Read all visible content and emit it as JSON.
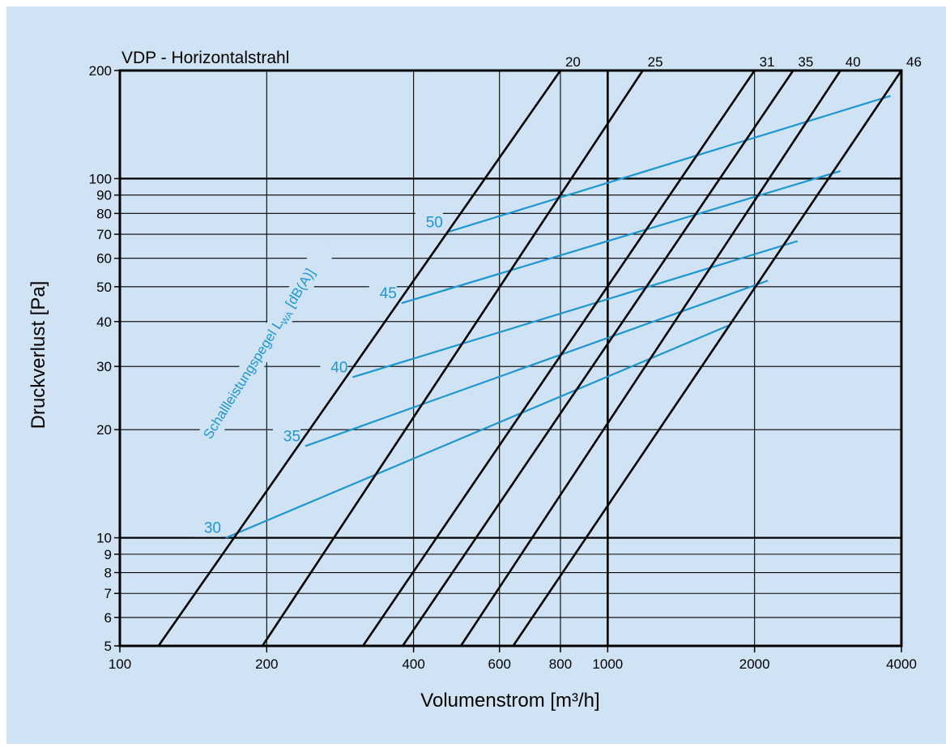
{
  "chart_data": {
    "type": "line",
    "title": "VDP - Horizontalstrahl",
    "xlabel": "Volumenstrom [m³/h]",
    "ylabel": "Druckverlust [Pa]",
    "xscale": "log",
    "yscale": "log",
    "xlim": [
      100,
      4000
    ],
    "ylim": [
      5,
      200
    ],
    "grid": true,
    "x_ticks": [
      {
        "value": 100,
        "label": "100"
      },
      {
        "value": 200,
        "label": "200"
      },
      {
        "value": 400,
        "label": "400"
      },
      {
        "value": 600,
        "label": "600"
      },
      {
        "value": 800,
        "label": "800"
      },
      {
        "value": 1000,
        "label": "1000"
      },
      {
        "value": 2000,
        "label": "2000"
      },
      {
        "value": 4000,
        "label": "4000"
      }
    ],
    "y_ticks": [
      {
        "value": 5,
        "label": "5"
      },
      {
        "value": 6,
        "label": "6"
      },
      {
        "value": 7,
        "label": "7"
      },
      {
        "value": 8,
        "label": "8"
      },
      {
        "value": 9,
        "label": "9"
      },
      {
        "value": 10,
        "label": "10"
      },
      {
        "value": 20,
        "label": "20"
      },
      {
        "value": 30,
        "label": "30"
      },
      {
        "value": 40,
        "label": "40"
      },
      {
        "value": 50,
        "label": "50"
      },
      {
        "value": 60,
        "label": "60"
      },
      {
        "value": 70,
        "label": "70"
      },
      {
        "value": 80,
        "label": "80"
      },
      {
        "value": 90,
        "label": "90"
      },
      {
        "value": 100,
        "label": "100"
      },
      {
        "value": 200,
        "label": "200"
      }
    ],
    "bold_y_gridlines": [
      10,
      100
    ],
    "bold_x_gridlines": [
      1000
    ],
    "size_lines": {
      "color": "#000000",
      "series": [
        {
          "name": "20",
          "points": [
            [
              120,
              5
            ],
            [
              800,
              200
            ]
          ]
        },
        {
          "name": "25",
          "points": [
            [
              196,
              5
            ],
            [
              1180,
              200
            ]
          ]
        },
        {
          "name": "31",
          "points": [
            [
              315,
              5
            ],
            [
              2000,
              200
            ]
          ]
        },
        {
          "name": "35",
          "points": [
            [
              380,
              5
            ],
            [
              2400,
              200
            ]
          ]
        },
        {
          "name": "40",
          "points": [
            [
              500,
              5
            ],
            [
              3000,
              200
            ]
          ]
        },
        {
          "name": "46",
          "points": [
            [
              640,
              5
            ],
            [
              4000,
              200
            ]
          ]
        }
      ]
    },
    "sound_power_lines": {
      "label": "Schallleistungspegel L",
      "label_subscript": "WA",
      "label_unit": "[dB(A)]",
      "color": "#1e96d0",
      "series": [
        {
          "name": "30",
          "points": [
            [
              165,
              10
            ],
            [
              1770,
              39
            ]
          ]
        },
        {
          "name": "35",
          "points": [
            [
              240,
              18
            ],
            [
              2130,
              52
            ]
          ]
        },
        {
          "name": "40",
          "points": [
            [
              300,
              28
            ],
            [
              2450,
              67
            ]
          ]
        },
        {
          "name": "45",
          "points": [
            [
              378,
              45
            ],
            [
              3000,
              105
            ]
          ]
        },
        {
          "name": "50",
          "points": [
            [
              470,
              71
            ],
            [
              3800,
              170
            ]
          ]
        }
      ]
    }
  }
}
